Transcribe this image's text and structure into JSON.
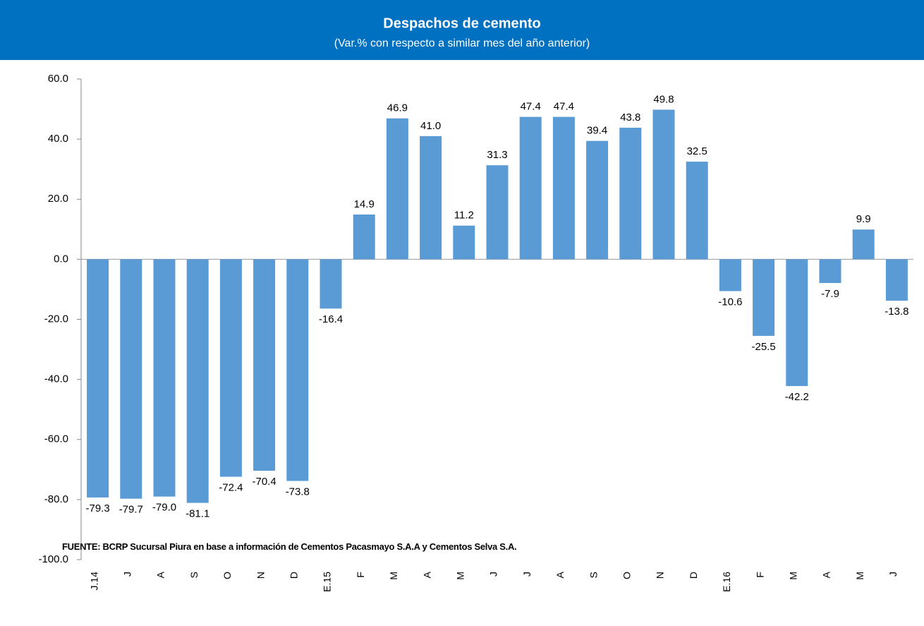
{
  "chart_data": {
    "type": "bar",
    "title": "Despachos de cemento",
    "subtitle": "(Var.% con respecto a similar mes del año anterior)",
    "categories": [
      "J.14",
      "J",
      "A",
      "S",
      "O",
      "N",
      "D",
      "E.15",
      "F",
      "M",
      "A",
      "M",
      "J",
      "J",
      "A",
      "S",
      "O",
      "N",
      "D",
      "E.16",
      "F",
      "M",
      "A",
      "M",
      "J"
    ],
    "values": [
      -79.3,
      -79.7,
      -79.0,
      -81.1,
      -72.4,
      -70.4,
      -73.8,
      -16.4,
      14.9,
      46.9,
      41.0,
      11.2,
      31.3,
      47.4,
      47.4,
      39.4,
      43.8,
      49.8,
      32.5,
      -10.6,
      -25.5,
      -42.2,
      -7.9,
      9.9,
      -13.8
    ],
    "value_labels": [
      "-79.3",
      "-79.7",
      "-79.0",
      "-81.1",
      "-72.4",
      "-70.4",
      "-73.8",
      "-16.4",
      "14.9",
      "46.9",
      "41.0",
      "11.2",
      "31.3",
      "47.4",
      "47.4",
      "39.4",
      "43.8",
      "49.8",
      "32.5",
      "-10.6",
      "-25.5",
      "-42.2",
      "-7.9",
      "9.9",
      "-13.8"
    ],
    "color": "#5b9bd5",
    "ylim": [
      -100,
      60
    ],
    "yticks": [
      {
        "value": -100,
        "label": "-100.0"
      },
      {
        "value": -80,
        "label": "-80.0"
      },
      {
        "value": -60,
        "label": "-60.0"
      },
      {
        "value": -40,
        "label": "-40.0"
      },
      {
        "value": -20,
        "label": "-20.0"
      },
      {
        "value": 0,
        "label": "0.0"
      },
      {
        "value": 20,
        "label": "20.0"
      },
      {
        "value": 40,
        "label": "40.0"
      },
      {
        "value": 60,
        "label": "60.0"
      }
    ],
    "grid": false,
    "source": "FUENTE:  BCRP Sucursal Piura en base a información de Cementos Pacasmayo S.A.A y Cementos Selva S.A."
  }
}
